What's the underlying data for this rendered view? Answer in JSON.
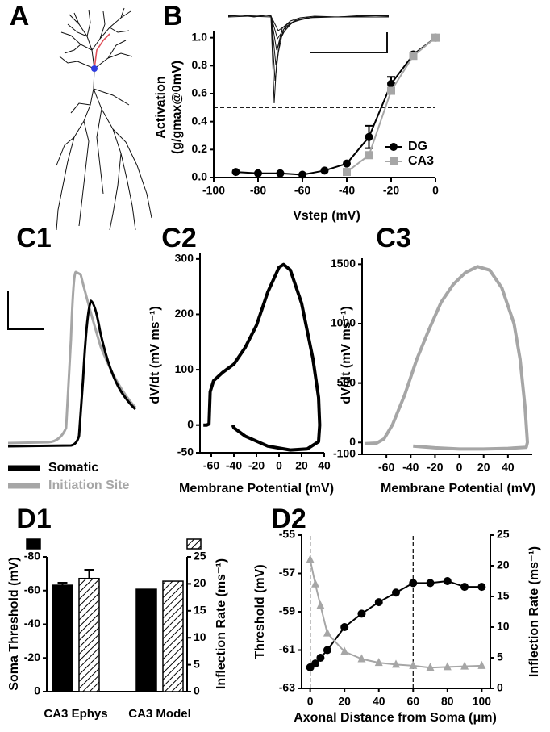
{
  "chart_data": [
    {
      "type": "morphology",
      "panel": "A"
    },
    {
      "type": "line",
      "panel": "B",
      "xlabel": "Vstep (mV)",
      "ylabel": [
        "Activation",
        "(g/gmax@0mV)"
      ],
      "xlim": [
        -100,
        0
      ],
      "xticks": [
        -100,
        -80,
        -60,
        -40,
        -20,
        0
      ],
      "ylim": [
        0,
        1.05
      ],
      "yticks": [
        {
          "value": 0,
          "label": "0.0"
        },
        0.2,
        0.4,
        0.6,
        0.8,
        {
          "value": 1,
          "label": "1.0"
        }
      ],
      "hline": 0.5,
      "legend": "lower right",
      "series": [
        {
          "name": "DG",
          "color": "#000000",
          "marker": "circle",
          "x": [
            -90,
            -80,
            -70,
            -60,
            -50,
            -40,
            -30,
            -20,
            -10,
            0
          ],
          "values": [
            0.04,
            0.03,
            0.03,
            0.02,
            0.05,
            0.1,
            0.29,
            0.67,
            0.88,
            1.0
          ],
          "errors": [
            null,
            null,
            null,
            null,
            null,
            null,
            0.08,
            0.05,
            null,
            null
          ]
        },
        {
          "name": "CA3",
          "color": "#a6a6a6",
          "marker": "square",
          "x": [
            -40,
            -30,
            -20,
            -10,
            0
          ],
          "values": [
            0.04,
            0.16,
            0.62,
            0.87,
            1.0
          ]
        }
      ]
    },
    {
      "type": "trace",
      "panel": "C1",
      "legend": "lower left",
      "series": [
        {
          "name": "Somatic",
          "color": "#000000"
        },
        {
          "name": "Initiation Site",
          "color": "#a6a6a6"
        }
      ]
    },
    {
      "type": "line",
      "panel": "C2",
      "xlabel": "Membrane Potential (mV)",
      "ylabel": "dV/dt (mV ms⁻¹)",
      "xlim": [
        -70,
        40
      ],
      "xticks": [
        -60,
        -40,
        -20,
        0,
        20,
        40
      ],
      "ylim": [
        -50,
        310
      ],
      "yticks": [
        -50,
        0,
        100,
        200,
        300
      ],
      "x": [
        -67,
        -64,
        -62,
        -61,
        -58,
        -50,
        -40,
        -30,
        -20,
        -10,
        0,
        4,
        10,
        20,
        30,
        35,
        36,
        35,
        25,
        10,
        -10,
        -30,
        -40,
        -41
      ],
      "series": [
        {
          "color": "#000000",
          "values": [
            0,
            0,
            2,
            60,
            80,
            95,
            110,
            140,
            180,
            240,
            285,
            290,
            280,
            220,
            120,
            50,
            0,
            -30,
            -43,
            -45,
            -38,
            -20,
            -5,
            0
          ]
        }
      ]
    },
    {
      "type": "line",
      "panel": "C3",
      "xlabel": "Membrane Potential (mV)",
      "ylabel": "dV/dt (mV ms⁻¹)",
      "xlim": [
        -80,
        60
      ],
      "xticks": [
        -60,
        -40,
        -20,
        0,
        20,
        40
      ],
      "ylim": [
        -100,
        1550
      ],
      "yticks": [
        -100,
        0,
        500,
        1000,
        1500
      ],
      "x": [
        -78,
        -68,
        -62,
        -55,
        -45,
        -35,
        -25,
        -15,
        -5,
        5,
        15,
        25,
        35,
        45,
        50,
        54,
        56,
        55,
        40,
        20,
        0,
        -20,
        -38
      ],
      "series": [
        {
          "color": "#a6a6a6",
          "values": [
            -10,
            -5,
            30,
            150,
            400,
            700,
            950,
            1180,
            1330,
            1430,
            1480,
            1450,
            1300,
            1000,
            700,
            300,
            0,
            -40,
            -50,
            -55,
            -55,
            -45,
            -30
          ]
        }
      ]
    },
    {
      "type": "bar",
      "panel": "D1",
      "ylabel": "Soma Threshold (mV)",
      "y2label": "Inflection Rate (ms⁻¹)",
      "categories": [
        "CA3 Ephys",
        "CA3 Model"
      ],
      "ylim": [
        0,
        -80
      ],
      "yticks": [
        0,
        -20,
        -40,
        -60,
        -80
      ],
      "y2lim": [
        0,
        25
      ],
      "y2ticks": [
        0,
        5,
        10,
        15,
        20,
        25
      ],
      "series": [
        {
          "color": "#000000",
          "values": [
            -63.2,
            -60.8
          ],
          "errors": [
            1.5,
            null
          ]
        },
        {
          "color": "#000000",
          "pattern": "hatch",
          "axis": "y2",
          "values": [
            21.0,
            20.5
          ],
          "errors": [
            1.6,
            null
          ]
        }
      ]
    },
    {
      "type": "line",
      "panel": "D2",
      "xlabel": "Axonal Distance from Soma (μm)",
      "ylabel": "Threshold (mV)",
      "y2label": "Inflection Rate (ms⁻¹)",
      "xlim": [
        -5,
        105
      ],
      "xticks": [
        0,
        20,
        40,
        60,
        80,
        100
      ],
      "ylim": [
        -63,
        -55
      ],
      "yticks": [
        -63,
        -61,
        -59,
        -57,
        -55
      ],
      "y2lim": [
        0,
        25
      ],
      "y2ticks": [
        0,
        5,
        10,
        15,
        20,
        25
      ],
      "vlines": [
        0,
        60
      ],
      "x": [
        0,
        3,
        6,
        10,
        20,
        30,
        40,
        50,
        60,
        70,
        80,
        90,
        100
      ],
      "series": [
        {
          "color": "#000000",
          "marker": "circle",
          "values": [
            -61.9,
            -61.7,
            -61.4,
            -61.0,
            -59.8,
            -59.1,
            -58.5,
            -58.0,
            -57.5,
            -57.5,
            -57.4,
            -57.7,
            -57.7
          ]
        },
        {
          "color": "#a6a6a6",
          "marker": "triangle",
          "axis": "y2",
          "values": [
            21,
            17,
            13.5,
            9,
            6,
            4.8,
            4.2,
            3.9,
            3.7,
            3.4,
            3.5,
            3.6,
            3.7
          ]
        }
      ]
    }
  ]
}
